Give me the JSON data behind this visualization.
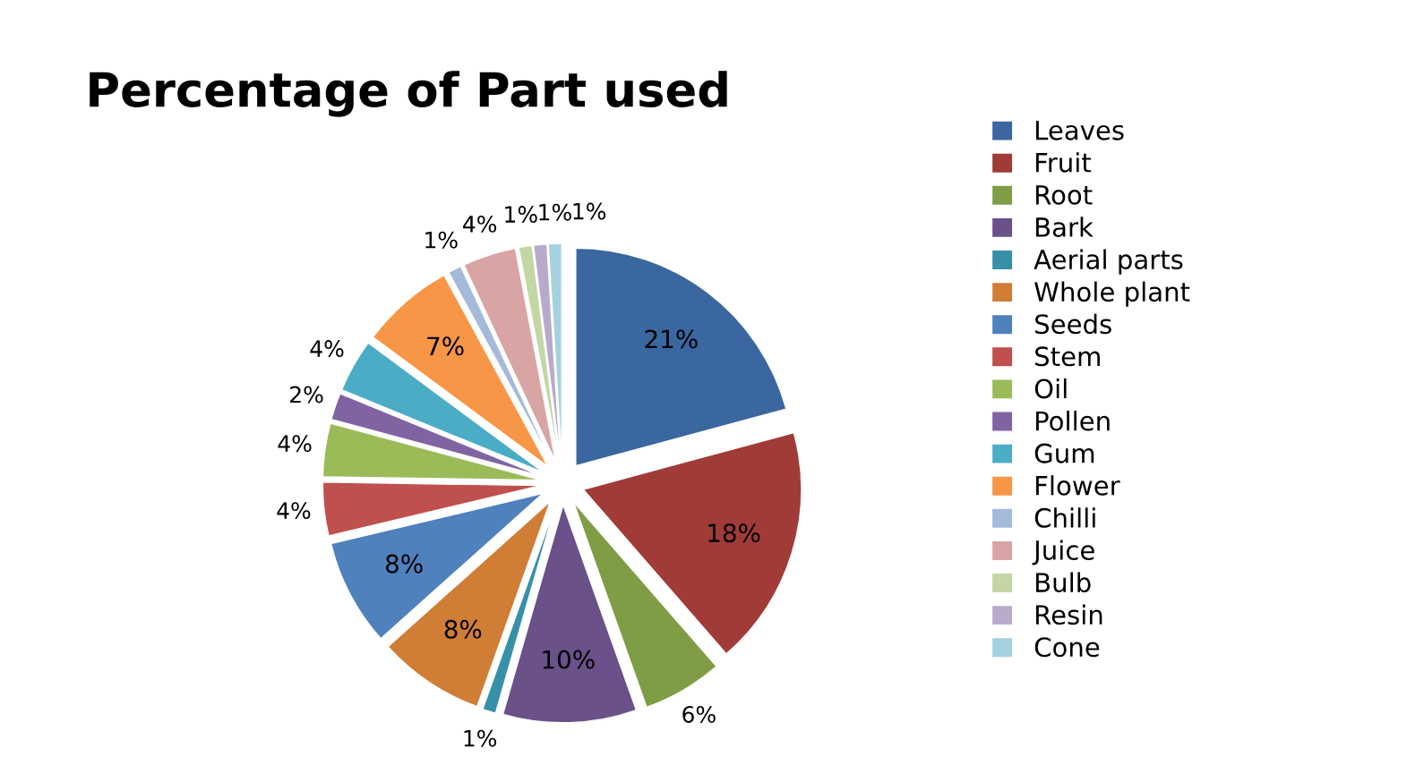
{
  "chart_data": {
    "type": "pie",
    "title": "Percentage of Part used",
    "categories": [
      "Leaves",
      "Fruit",
      "Root",
      "Bark",
      "Aerial parts",
      "Whole plant",
      "Seeds",
      "Stem",
      "Oil",
      "Pollen",
      "Gum",
      "Flower",
      "Chilli",
      "Juice",
      "Bulb",
      "Resin",
      "Cone"
    ],
    "values": [
      21,
      18,
      6,
      10,
      1,
      8,
      8,
      4,
      4,
      2,
      4,
      7,
      1,
      4,
      1,
      1,
      1
    ],
    "colors": [
      "#3a67a0",
      "#a13b38",
      "#7f9d45",
      "#6a5189",
      "#3890a8",
      "#d07d36",
      "#4f81bd",
      "#c0504d",
      "#9bbb59",
      "#8064a2",
      "#4bacc6",
      "#f79646",
      "#a5b9db",
      "#d9a5a4",
      "#c3d6a4",
      "#b8aacb",
      "#a5d2e0"
    ],
    "value_labels": [
      "21%",
      "18%",
      "6%",
      "10%",
      "1%",
      "8%",
      "8%",
      "4%",
      "4%",
      "2%",
      "4%",
      "7%",
      "1%",
      "4%",
      "1%",
      "1%",
      "1%"
    ],
    "legend": "right"
  }
}
